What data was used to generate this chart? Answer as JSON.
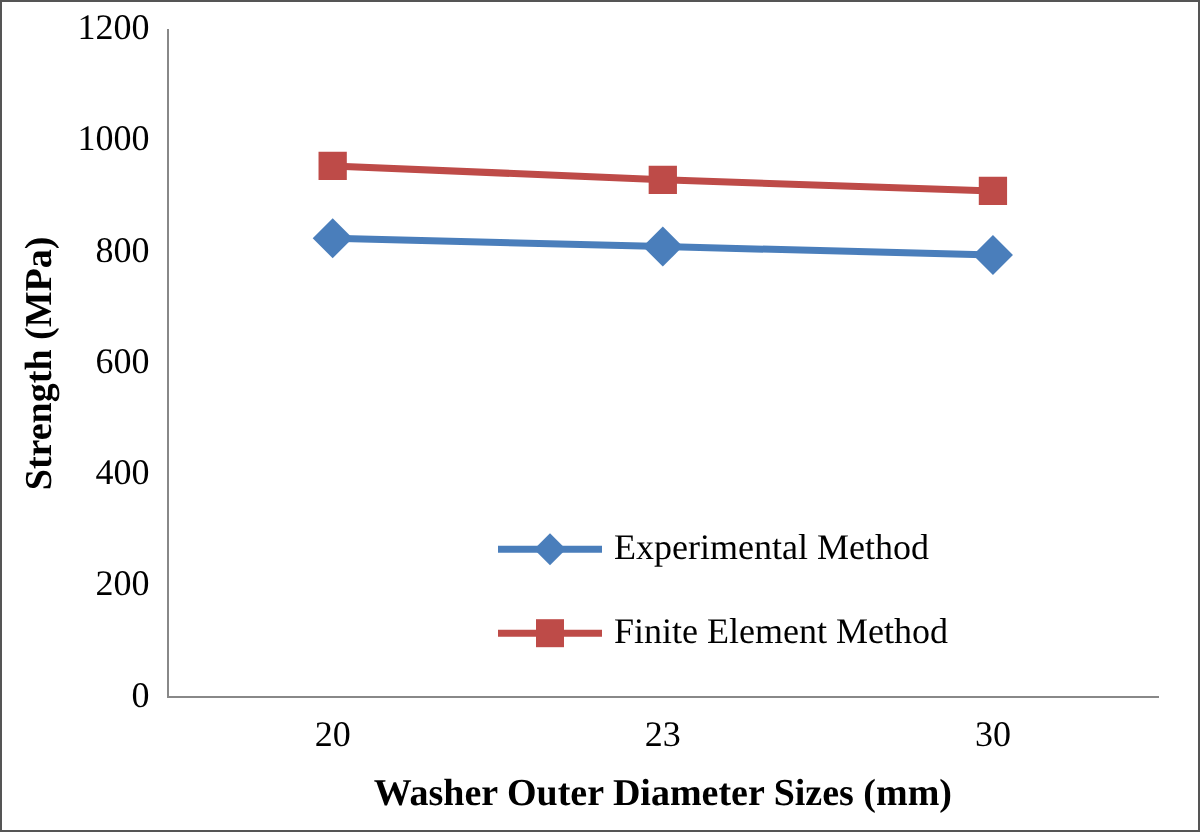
{
  "chart_data": {
    "type": "line",
    "xlabel": "Washer Outer Diameter Sizes (mm)",
    "ylabel": "Strength (MPa)",
    "categories": [
      "20",
      "23",
      "30"
    ],
    "series": [
      {
        "name": "Experimental Method",
        "color": "#4a7ebb",
        "marker": "diamond",
        "values": [
          825,
          810,
          795
        ]
      },
      {
        "name": "Finite Element Method",
        "color": "#be4b48",
        "marker": "square",
        "values": [
          955,
          930,
          910
        ]
      }
    ],
    "ylim": [
      0,
      1200
    ],
    "yticks": [
      0,
      200,
      400,
      600,
      800,
      1000,
      1200
    ],
    "grid": false,
    "legend": "bottom right"
  }
}
